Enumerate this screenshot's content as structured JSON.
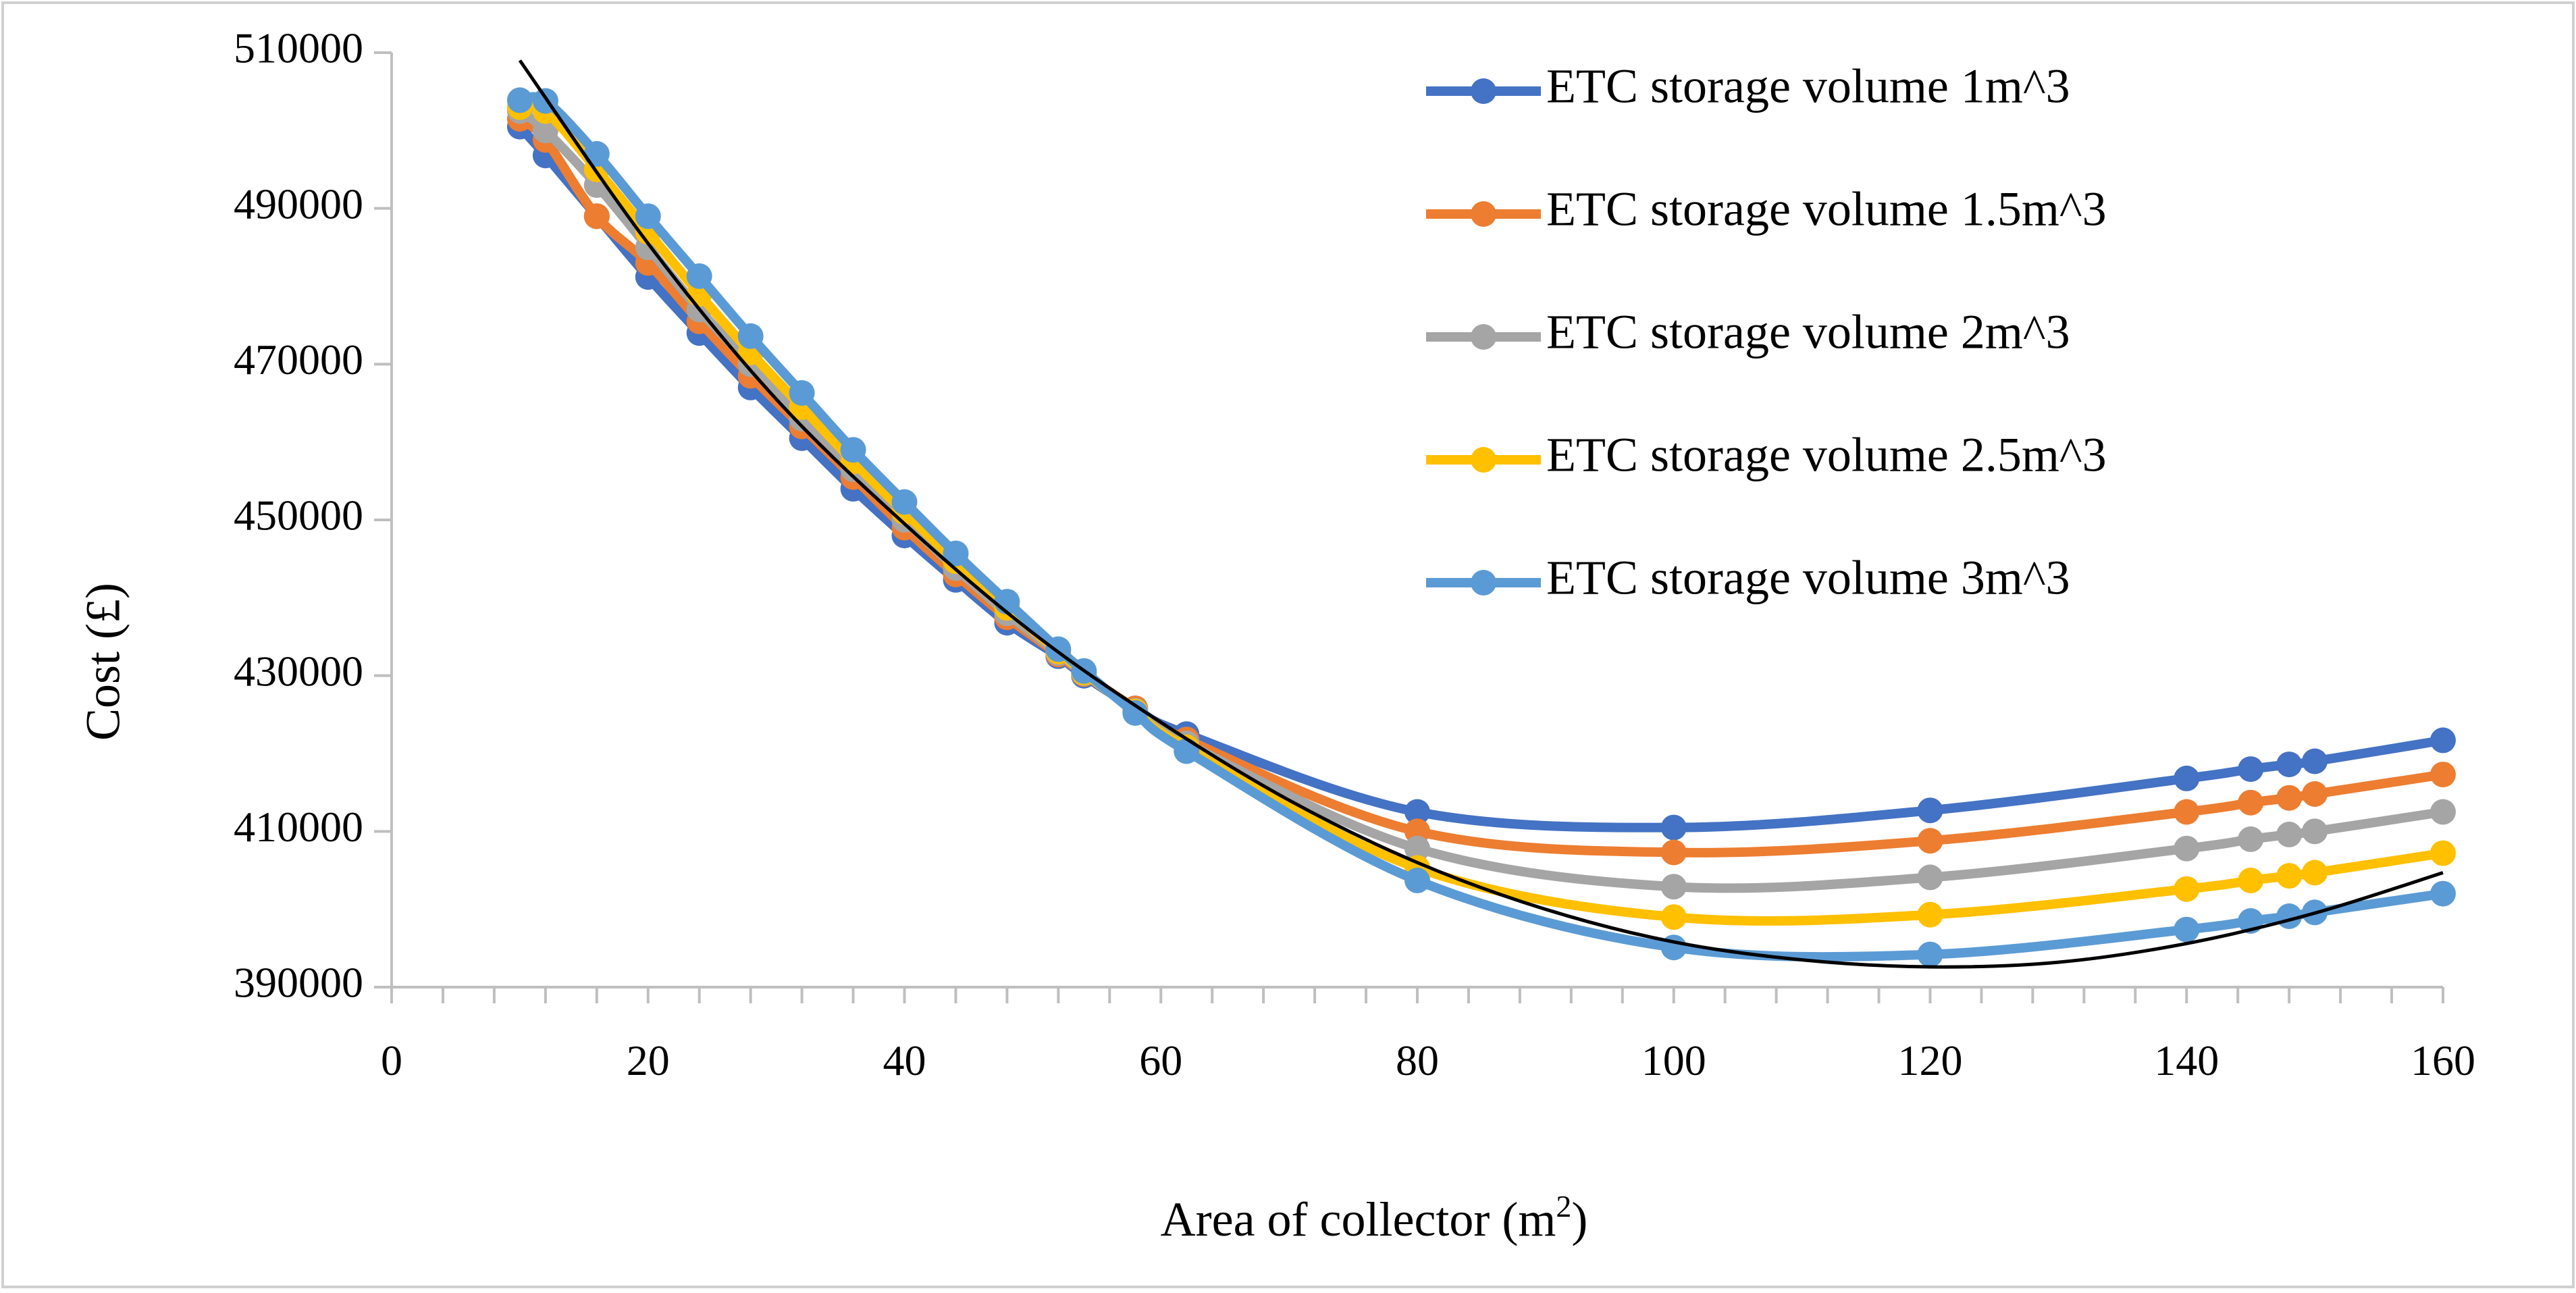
{
  "chart_data": {
    "type": "line",
    "title": "",
    "xlabel": "Area of collector (m",
    "xlabel_sup": "2",
    "xlabel_tail": ")",
    "ylabel": "Cost (£)",
    "xlim": [
      0,
      160
    ],
    "ylim": [
      390000,
      510000
    ],
    "x_ticks": [
      "0",
      "20",
      "40",
      "60",
      "80",
      "100",
      "120",
      "140",
      "160"
    ],
    "y_ticks": [
      "390000",
      "410000",
      "430000",
      "450000",
      "470000",
      "490000",
      "510000"
    ],
    "grid": false,
    "legend_position": "top-right",
    "x": [
      10,
      12,
      16,
      20,
      24,
      28,
      32,
      36,
      40,
      44,
      48,
      52,
      54,
      58,
      62,
      80,
      100,
      120,
      140,
      145,
      148,
      150,
      160
    ],
    "series": [
      {
        "name": "ETC storage volume 1m^3",
        "color": "#4472C4",
        "values": [
          500500,
          496800,
          489000,
          481200,
          474000,
          467000,
          460500,
          454000,
          448000,
          442300,
          436800,
          432500,
          430000,
          425800,
          422500,
          412500,
          410500,
          412700,
          416800,
          418000,
          418600,
          419000,
          421700
        ]
      },
      {
        "name": "ETC storage volume 1.5m^3",
        "color": "#ED7D31",
        "values": [
          501500,
          498800,
          489000,
          483000,
          475500,
          468500,
          462000,
          455500,
          449000,
          443000,
          437500,
          432700,
          430200,
          425800,
          421800,
          410000,
          407300,
          408800,
          412500,
          413700,
          414300,
          414800,
          417300
        ]
      },
      {
        "name": "ETC storage volume 2m^3",
        "color": "#A5A5A5",
        "values": [
          502500,
          500000,
          493000,
          485000,
          477000,
          470000,
          463000,
          456500,
          450000,
          443800,
          438000,
          432900,
          430300,
          425500,
          421300,
          407800,
          402900,
          404100,
          407800,
          409000,
          409600,
          410000,
          412500
        ]
      },
      {
        "name": "ETC storage volume 2.5m^3",
        "color": "#FFC000",
        "values": [
          503000,
          502500,
          495000,
          487000,
          479000,
          471500,
          464500,
          457500,
          451000,
          444700,
          438700,
          433100,
          430400,
          425400,
          420800,
          405300,
          399000,
          399300,
          402600,
          403700,
          404300,
          404700,
          407200
        ]
      },
      {
        "name": "ETC storage volume 3m^3",
        "color": "#5B9BD5",
        "values": [
          503900,
          503800,
          497000,
          489000,
          481300,
          473600,
          466300,
          459000,
          452300,
          445700,
          439500,
          433400,
          430600,
          425200,
          420300,
          403700,
          395100,
          394200,
          397400,
          398500,
          399100,
          399600,
          402000
        ]
      }
    ],
    "trendline": {
      "color": "#000000",
      "x": [
        10,
        20,
        30,
        40,
        50,
        60,
        70,
        80,
        90,
        100,
        110,
        120,
        130,
        140,
        150,
        160
      ],
      "values": [
        509000,
        485500,
        465500,
        449500,
        435500,
        424000,
        414000,
        406000,
        400000,
        395800,
        393500,
        392600,
        393200,
        395600,
        399500,
        404700
      ]
    }
  }
}
